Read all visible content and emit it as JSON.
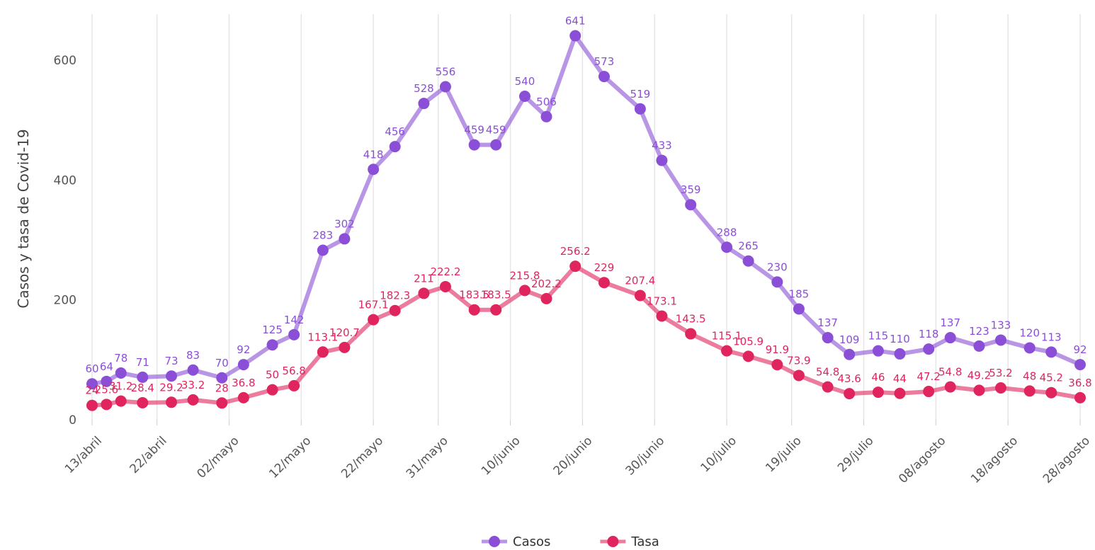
{
  "chart_data": {
    "type": "line",
    "y_label": "Casos y tasa de Covid-19",
    "x": [
      0,
      2,
      4,
      7,
      11,
      14,
      18,
      21,
      25,
      28,
      32,
      35,
      39,
      42,
      46,
      49,
      53,
      56,
      60,
      63,
      67,
      71,
      76,
      79,
      83,
      88,
      91,
      95,
      98,
      102,
      105,
      109,
      112,
      116,
      119,
      123,
      126,
      130,
      133,
      137
    ],
    "xlim": [
      0,
      137
    ],
    "xticks": [
      {
        "value": 0,
        "label": "13/abril"
      },
      {
        "value": 9,
        "label": "22/abril"
      },
      {
        "value": 19,
        "label": "02/mayo"
      },
      {
        "value": 29,
        "label": "12/mayo"
      },
      {
        "value": 39,
        "label": "22/mayo"
      },
      {
        "value": 48,
        "label": "31/mayo"
      },
      {
        "value": 58,
        "label": "10/junio"
      },
      {
        "value": 68,
        "label": "20/junio"
      },
      {
        "value": 78,
        "label": "30/junio"
      },
      {
        "value": 88,
        "label": "10/julio"
      },
      {
        "value": 97,
        "label": "19/julio"
      },
      {
        "value": 107,
        "label": "29/julio"
      },
      {
        "value": 117,
        "label": "08/agosto"
      },
      {
        "value": 127,
        "label": "18/agosto"
      },
      {
        "value": 137,
        "label": "28/agosto"
      }
    ],
    "ylim": [
      0,
      670
    ],
    "yticks": [
      0,
      200,
      400,
      600
    ],
    "grid": "x",
    "legend": "bottom",
    "series": [
      {
        "name": "Casos",
        "color": "#8a4fd6",
        "values": [
          60,
          64,
          78,
          71,
          73,
          83,
          70,
          92,
          125,
          142,
          283,
          302,
          418,
          456,
          528,
          556,
          459,
          459,
          540,
          506,
          641,
          573,
          519,
          433,
          359,
          288,
          265,
          230,
          185,
          137,
          109,
          115,
          110,
          118,
          137,
          123,
          133,
          120,
          113,
          92
        ]
      },
      {
        "name": "Tasa",
        "color": "#e0245e",
        "values": [
          24,
          25.6,
          31.2,
          28.4,
          29.2,
          33.2,
          28,
          36.8,
          50,
          56.8,
          113.1,
          120.7,
          167.1,
          182.3,
          211,
          222.2,
          183.5,
          183.5,
          215.8,
          202.2,
          256.2,
          229,
          207.4,
          173.1,
          143.5,
          115.1,
          105.9,
          91.9,
          73.9,
          54.8,
          43.6,
          46,
          44,
          47.2,
          54.8,
          49.2,
          53.2,
          48,
          45.2,
          36.8
        ]
      }
    ]
  }
}
